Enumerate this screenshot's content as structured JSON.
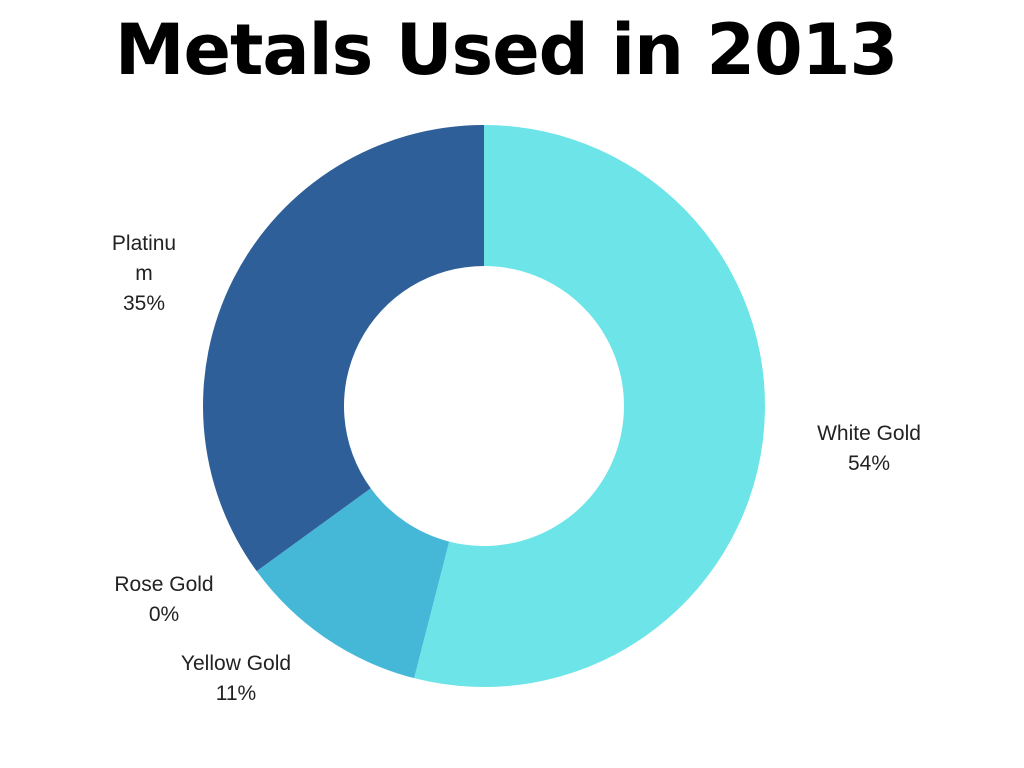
{
  "chart_data": {
    "type": "pie",
    "title": "Metals Used in 2013",
    "slices": [
      {
        "label": "White Gold",
        "value": 54,
        "value_label": "54%",
        "color": "#6ce4e8"
      },
      {
        "label": "Yellow Gold",
        "value": 11,
        "value_label": "11%",
        "color": "#45b8d8"
      },
      {
        "label": "Rose Gold",
        "value": 0,
        "value_label": "0%",
        "color": "#3a8ec4"
      },
      {
        "label": "Platinum",
        "value": 35,
        "value_label": "35%",
        "color": "#2e5f98"
      }
    ],
    "donut": true,
    "start_angle": "12 o'clock",
    "direction": "clockwise",
    "legend": "none"
  },
  "labels": {
    "platinum_line1": "Platinu",
    "platinum_line2": "m"
  }
}
